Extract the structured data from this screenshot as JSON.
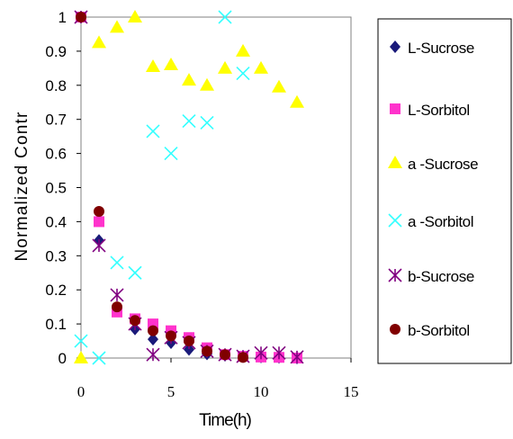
{
  "chart_data": {
    "type": "scatter",
    "title": "",
    "xlabel": "Time(h)",
    "ylabel": "Normalized Contr",
    "xlim": [
      0,
      15
    ],
    "ylim": [
      0,
      1
    ],
    "xticks": [
      "0",
      "5",
      "10",
      "15"
    ],
    "yticks": [
      "0",
      "0.1",
      "0.2",
      "0.3",
      "0.4",
      "0.5",
      "0.6",
      "0.7",
      "0.8",
      "0.9",
      "1"
    ],
    "grid": false,
    "legend_position": "right",
    "series": [
      {
        "name": "L-Sucrose",
        "marker": "diamond",
        "color": "#1a1a7a",
        "x": [
          0,
          1,
          2,
          3,
          4,
          5,
          6,
          7,
          8,
          9,
          10,
          11,
          12
        ],
        "y": [
          1.0,
          0.345,
          0.14,
          0.085,
          0.055,
          0.045,
          0.025,
          0.012,
          0.008,
          0.004,
          0.003,
          0.002,
          0.0
        ]
      },
      {
        "name": "L-Sorbitol",
        "marker": "square",
        "color": "#ff33cc",
        "x": [
          0,
          1,
          2,
          3,
          4,
          5,
          6,
          7,
          8,
          9,
          10,
          11,
          12
        ],
        "y": [
          1.0,
          0.4,
          0.135,
          0.115,
          0.1,
          0.08,
          0.06,
          0.03,
          0.01,
          0.005,
          0.003,
          0.002,
          0.0
        ]
      },
      {
        "name": "a -Sucrose",
        "marker": "triangle",
        "color": "#ffff00",
        "x": [
          0,
          1,
          2,
          3,
          4,
          5,
          6,
          7,
          8,
          9,
          10,
          11,
          12
        ],
        "y": [
          0.0,
          0.925,
          0.97,
          1.0,
          0.855,
          0.86,
          0.815,
          0.8,
          0.85,
          0.9,
          0.85,
          0.795,
          0.75
        ]
      },
      {
        "name": "a -Sorbitol",
        "marker": "x",
        "color": "#33ffff",
        "x": [
          0,
          1,
          2,
          3,
          4,
          5,
          6,
          7,
          8,
          9
        ],
        "y": [
          0.05,
          0.0,
          0.28,
          0.25,
          0.665,
          0.6,
          0.695,
          0.69,
          1.0,
          0.835
        ]
      },
      {
        "name": "b-Sucrose",
        "marker": "star",
        "color": "#800080",
        "x": [
          0,
          1,
          2,
          3,
          4,
          5,
          6,
          7,
          8,
          9,
          10,
          11,
          12
        ],
        "y": [
          1.0,
          0.33,
          0.185,
          0.1,
          0.01,
          0.06,
          0.045,
          0.02,
          0.01,
          0.005,
          0.015,
          0.015,
          0.003
        ]
      },
      {
        "name": "b-Sorbitol",
        "marker": "circle",
        "color": "#800000",
        "x": [
          0,
          1,
          2,
          3,
          4,
          5,
          6,
          7,
          8,
          9
        ],
        "y": [
          1.0,
          0.43,
          0.15,
          0.11,
          0.08,
          0.065,
          0.05,
          0.02,
          0.01,
          0.002
        ]
      }
    ]
  }
}
